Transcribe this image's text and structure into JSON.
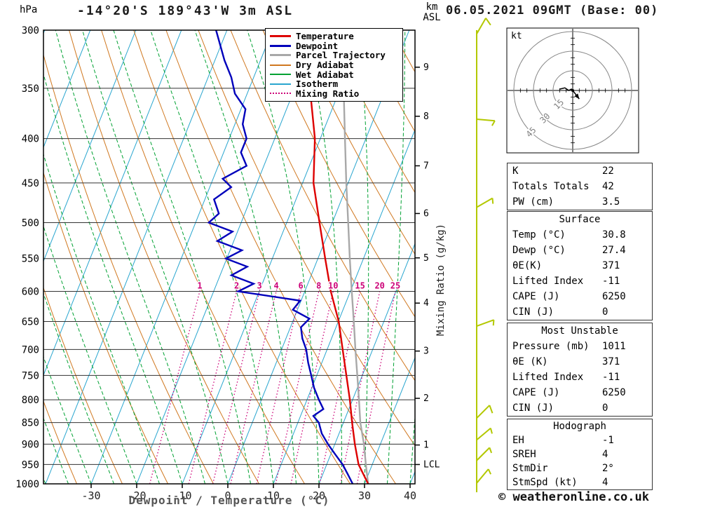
{
  "header": {
    "pressure_unit": "hPa",
    "station_title": "-14°20'S 189°43'W 3m ASL",
    "altitude_unit_line1": "km",
    "altitude_unit_line2": "ASL",
    "datetime": "06.05.2021 09GMT (Base: 00)"
  },
  "axes_labels": {
    "xlabel": "Dewpoint / Temperature (°C)",
    "mixing_ratio_label": "Mixing Ratio (g/kg)"
  },
  "footer": {
    "credit": "© weatheronline.co.uk"
  },
  "chart_data": [
    {
      "type": "skewt-logp",
      "title": "-14°20'S 189°43'W 3m ASL",
      "xlabel": "Dewpoint / Temperature (°C)",
      "ylabel": "hPa",
      "pressure_range_hPa": [
        300,
        1000
      ],
      "x_range_C": [
        -41,
        41
      ],
      "pressure_ticks": [
        300,
        350,
        400,
        450,
        500,
        550,
        600,
        650,
        700,
        750,
        800,
        850,
        900,
        950,
        1000
      ],
      "temp_ticks_C": [
        -30,
        -20,
        -10,
        0,
        10,
        20,
        30,
        40
      ],
      "km_ticks": [
        {
          "km": 1,
          "p": 902
        },
        {
          "km": 2,
          "p": 797
        },
        {
          "km": 3,
          "p": 703
        },
        {
          "km": 4,
          "p": 619
        },
        {
          "km": 5,
          "p": 549
        },
        {
          "km": 6,
          "p": 488
        },
        {
          "km": 7,
          "p": 430
        },
        {
          "km": 8,
          "p": 377
        },
        {
          "km": 9,
          "p": 331
        }
      ],
      "lcl": {
        "label": "LCL",
        "p": 950
      },
      "isotherms_C": {
        "min": -90,
        "max": 40,
        "step": 10,
        "color": "#2aa6cf"
      },
      "dry_adiabats_K": {
        "min": 230,
        "max": 450,
        "step": 10,
        "color": "#d07820"
      },
      "wet_adiabats_C1000": {
        "min": -40,
        "max": 40,
        "step": 5,
        "color": "#00a132"
      },
      "mixing_ratio_gkg": {
        "values": [
          1,
          2,
          3,
          4,
          6,
          8,
          10,
          15,
          20,
          25
        ],
        "label_p": 600,
        "top_p": 590,
        "color": "#cc0077"
      },
      "series": [
        {
          "name": "Temperature",
          "color": "#dd0000",
          "points": [
            [
              1000,
              30.8
            ],
            [
              950,
              27
            ],
            [
              900,
              24.4
            ],
            [
              850,
              21.9
            ],
            [
              800,
              19.4
            ],
            [
              750,
              16.5
            ],
            [
              700,
              13.4
            ],
            [
              650,
              10.1
            ],
            [
              600,
              5.7
            ],
            [
              550,
              1.6
            ],
            [
              500,
              -2.8
            ],
            [
              450,
              -7.6
            ],
            [
              400,
              -11.2
            ],
            [
              350,
              -16.7
            ],
            [
              300,
              -23.7
            ]
          ]
        },
        {
          "name": "Dewpoint",
          "color": "#0000bb",
          "points": [
            [
              1000,
              27.4
            ],
            [
              975,
              25.5
            ],
            [
              950,
              23.5
            ],
            [
              925,
              21
            ],
            [
              900,
              18.5
            ],
            [
              875,
              16.2
            ],
            [
              850,
              14.6
            ],
            [
              835,
              12.8
            ],
            [
              820,
              14.4
            ],
            [
              800,
              12.6
            ],
            [
              775,
              10.5
            ],
            [
              750,
              8.8
            ],
            [
              725,
              7
            ],
            [
              700,
              5.4
            ],
            [
              680,
              3.6
            ],
            [
              660,
              2.3
            ],
            [
              645,
              3.4
            ],
            [
              630,
              -1
            ],
            [
              615,
              -0.2
            ],
            [
              600,
              -14.6
            ],
            [
              588,
              -11.9
            ],
            [
              575,
              -17.5
            ],
            [
              562,
              -14.8
            ],
            [
              550,
              -20.2
            ],
            [
              538,
              -17.4
            ],
            [
              525,
              -23.6
            ],
            [
              512,
              -21.1
            ],
            [
              500,
              -27.1
            ],
            [
              488,
              -25.7
            ],
            [
              470,
              -28
            ],
            [
              455,
              -25.3
            ],
            [
              445,
              -27.9
            ],
            [
              430,
              -23.8
            ],
            [
              415,
              -26.2
            ],
            [
              400,
              -26.2
            ],
            [
              385,
              -28.3
            ],
            [
              370,
              -29
            ],
            [
              355,
              -32.7
            ],
            [
              340,
              -34.9
            ],
            [
              325,
              -37.9
            ],
            [
              300,
              -42.4
            ]
          ]
        },
        {
          "name": "Parcel Trajectory",
          "color": "#a8a8a8",
          "points": [
            [
              1000,
              30.8
            ],
            [
              950,
              28.6
            ],
            [
              900,
              26.4
            ],
            [
              850,
              23.7
            ],
            [
              800,
              21.4
            ],
            [
              750,
              18.9
            ],
            [
              700,
              16.2
            ],
            [
              650,
              13.4
            ],
            [
              600,
              10.3
            ],
            [
              550,
              7
            ],
            [
              500,
              3.5
            ],
            [
              450,
              -0.4
            ],
            [
              400,
              -4.6
            ],
            [
              350,
              -9.3
            ],
            [
              300,
              -15
            ]
          ]
        }
      ],
      "legend": [
        {
          "label": "Temperature",
          "color": "#dd0000",
          "style": "solid",
          "weight": 3
        },
        {
          "label": "Dewpoint",
          "color": "#0000bb",
          "style": "solid",
          "weight": 3
        },
        {
          "label": "Parcel Trajectory",
          "color": "#a8a8a8",
          "style": "solid",
          "weight": 3
        },
        {
          "label": "Dry Adiabat",
          "color": "#d07820",
          "style": "solid",
          "weight": 2
        },
        {
          "label": "Wet Adiabat",
          "color": "#00a132",
          "style": "solid",
          "weight": 2
        },
        {
          "label": "Isotherm",
          "color": "#2aa6cf",
          "style": "solid",
          "weight": 2
        },
        {
          "label": "Mixing Ratio",
          "color": "#cc0077",
          "style": "dotted",
          "weight": 2
        }
      ],
      "wind_barbs": {
        "color": "#b3c800",
        "levels": [
          {
            "p": 303,
            "dir": 30,
            "spd": 10
          },
          {
            "p": 380,
            "dir": 95,
            "spd": 5
          },
          {
            "p": 480,
            "dir": 60,
            "spd": 5
          },
          {
            "p": 658,
            "dir": 70,
            "spd": 5
          },
          {
            "p": 840,
            "dir": 45,
            "spd": 10
          },
          {
            "p": 890,
            "dir": 50,
            "spd": 5
          },
          {
            "p": 940,
            "dir": 45,
            "spd": 5
          },
          {
            "p": 998,
            "dir": 40,
            "spd": 5
          }
        ]
      }
    },
    {
      "type": "hodograph",
      "unit_label": "kt",
      "rings_kt": [
        15,
        30,
        45
      ],
      "ring_interval_kt": 15,
      "trace_kt": [
        [
          -10,
          1
        ],
        [
          -6,
          2
        ],
        [
          -3,
          0
        ],
        [
          -1,
          1
        ],
        [
          0,
          0
        ]
      ],
      "storm_motion_kt": {
        "dir_deg": 2,
        "spd_kt": 4,
        "arrow_to": [
          5,
          -6.5
        ]
      },
      "colors": {
        "rings": "#888888",
        "axes": "#000000",
        "trace": "#000000"
      }
    }
  ],
  "tables": {
    "sections": [
      {
        "rows": [
          {
            "label": "K",
            "value": "22"
          },
          {
            "label": "Totals Totals",
            "value": "42"
          },
          {
            "label": "PW (cm)",
            "value": "3.5"
          }
        ]
      },
      {
        "header": "Surface",
        "rows": [
          {
            "label": "Temp (°C)",
            "value": "30.8"
          },
          {
            "label": "Dewp (°C)",
            "value": "27.4"
          },
          {
            "label": "θE(K)",
            "value": "371"
          },
          {
            "label": "Lifted Index",
            "value": "-11"
          },
          {
            "label": "CAPE (J)",
            "value": "6250"
          },
          {
            "label": "CIN (J)",
            "value": "0"
          }
        ]
      },
      {
        "header": "Most Unstable",
        "rows": [
          {
            "label": "Pressure (mb)",
            "value": "1011"
          },
          {
            "label": "θE (K)",
            "value": "371"
          },
          {
            "label": "Lifted Index",
            "value": "-11"
          },
          {
            "label": "CAPE (J)",
            "value": "6250"
          },
          {
            "label": "CIN (J)",
            "value": "0"
          }
        ]
      },
      {
        "header": "Hodograph",
        "rows": [
          {
            "label": "EH",
            "value": "-1"
          },
          {
            "label": "SREH",
            "value": "4"
          },
          {
            "label": "StmDir",
            "value": "2°"
          },
          {
            "label": "StmSpd (kt)",
            "value": "4"
          }
        ]
      }
    ]
  }
}
